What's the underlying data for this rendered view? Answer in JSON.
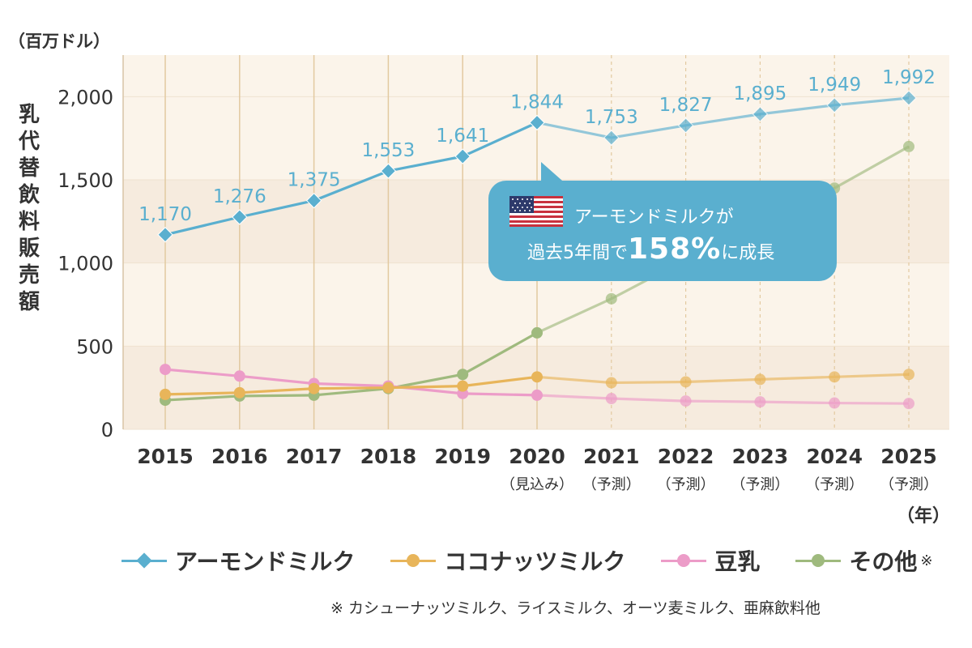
{
  "chart_data": {
    "type": "line",
    "unit_label": "（百万ドル）",
    "ylabel": "乳代替飲料販売額",
    "xlabel_unit": "（年）",
    "ylim": [
      0,
      2250
    ],
    "yticks": [
      0,
      500,
      1000,
      1500,
      2000
    ],
    "ytick_labels": [
      "0",
      "500",
      "1,000",
      "1,500",
      "2,000"
    ],
    "categories": [
      "2015",
      "2016",
      "2017",
      "2018",
      "2019",
      "2020",
      "2021",
      "2022",
      "2023",
      "2024",
      "2025"
    ],
    "category_sublabels": [
      "",
      "",
      "",
      "",
      "",
      "（見込み）",
      "（予測）",
      "（予測）",
      "（予測）",
      "（予測）",
      "（予測）"
    ],
    "forecast_start_index": 5,
    "series": [
      {
        "name": "アーモンドミルク",
        "color": "#5aafcf",
        "marker": "diamond",
        "values": [
          1170,
          1276,
          1375,
          1553,
          1641,
          1844,
          1753,
          1827,
          1895,
          1949,
          1992
        ],
        "labels": [
          "1,170",
          "1,276",
          "1,375",
          "1,553",
          "1,641",
          "1,844",
          "1,753",
          "1,827",
          "1,895",
          "1,949",
          "1,992"
        ]
      },
      {
        "name": "ココナッツミルク",
        "color": "#e8b55a",
        "marker": "circle",
        "values": [
          210,
          220,
          245,
          250,
          260,
          315,
          280,
          285,
          300,
          315,
          330
        ]
      },
      {
        "name": "豆乳",
        "color": "#ec9cc8",
        "marker": "circle",
        "values": [
          360,
          320,
          275,
          260,
          215,
          205,
          185,
          170,
          165,
          158,
          155
        ]
      },
      {
        "name": "その他",
        "color": "#9fba7e",
        "marker": "circle",
        "values": [
          175,
          200,
          205,
          245,
          330,
          580,
          785,
          1020,
          1250,
          1450,
          1700
        ]
      }
    ],
    "legend_placement": "bottom"
  },
  "legend_note_mark": "※",
  "footnote": "※ カシューナッツミルク、ライスミルク、オーツ麦ミルク、亜麻飲料他",
  "callout": {
    "line1": "アーモンドミルクが",
    "line2_prefix": "過去5年間で",
    "line2_big": "158%",
    "line2_suffix": "に成長",
    "flag_icon": "us-flag-icon"
  }
}
